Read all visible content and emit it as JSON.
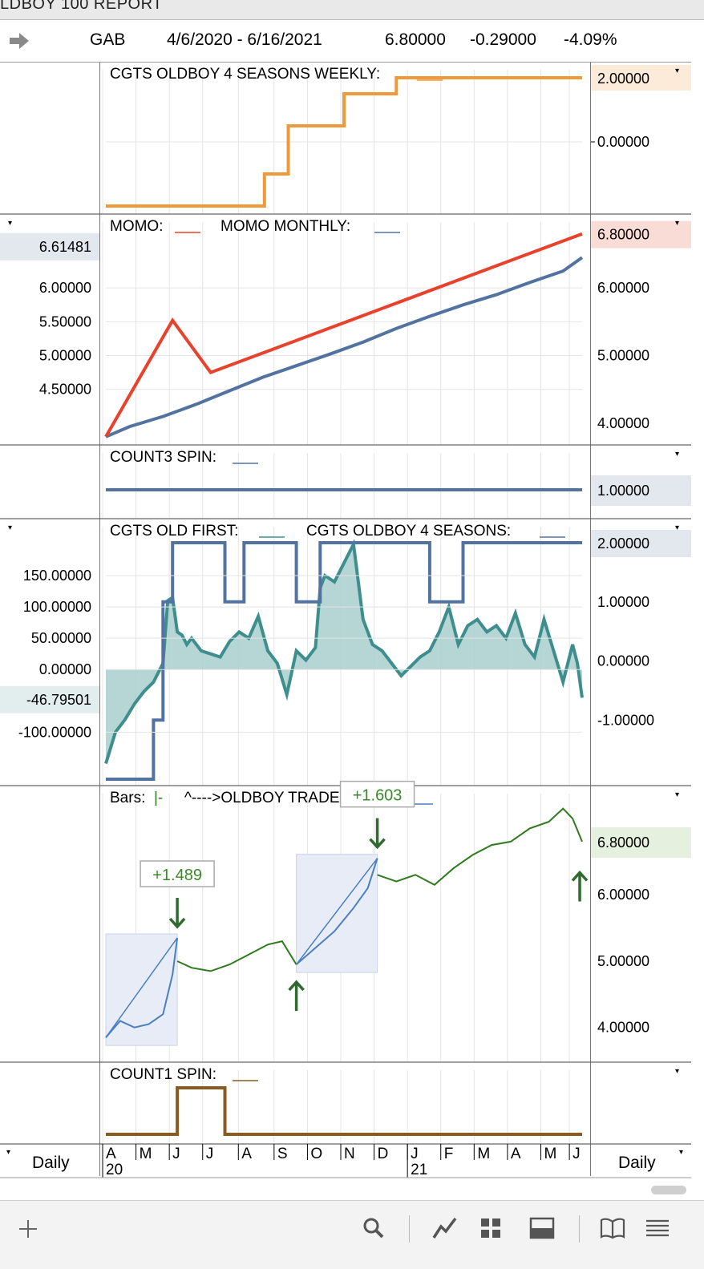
{
  "window": {
    "title": "LDBOY 100  REPORT"
  },
  "header": {
    "symbol": "GAB",
    "date_range": "4/6/2020 - 6/16/2021",
    "last": "6.80000",
    "change": "-0.29000",
    "pct_change": "-4.09%"
  },
  "colors": {
    "orange": "#F0993A",
    "red": "#E8412C",
    "blue": "#5272A0",
    "teal": "#3F8E8E",
    "teal_fill": "#A9CFCF",
    "green": "#2E7A1C",
    "brown": "#8B5A1E",
    "trade_blue": "#4A7FBF"
  },
  "footer": {
    "left_period": "Daily",
    "right_period": "Daily"
  },
  "toolbar": {
    "icons": [
      "plus-icon",
      "search-icon",
      "line-chart-icon",
      "grid-icon",
      "panel-icon",
      "book-icon",
      "menu-icon"
    ]
  },
  "chart_data": [
    {
      "type": "line",
      "title": "CGTS OLDBOY 4 SEASONS WEEKLY:",
      "series": [
        {
          "name": "CGTS OLDBOY 4 SEASONS WEEKLY",
          "color": "#F0993A",
          "style": "step",
          "x": [
            0,
            0.333,
            0.333,
            0.383,
            0.383,
            0.5,
            0.5,
            0.515,
            0.515,
            0.61,
            0.61,
            0.625,
            0.625,
            1
          ],
          "values": [
            -2,
            -2,
            -1,
            -1,
            0.5,
            0.5,
            1.5,
            1.5,
            1.5,
            1.5,
            2,
            2,
            2,
            2
          ]
        }
      ],
      "right_ticks": [
        "0.00000"
      ],
      "right_badge": "2.00000",
      "ylim": [
        -2.1,
        2.2
      ]
    },
    {
      "type": "line",
      "title": "MOMO:",
      "title2": "MOMO MONTHLY:",
      "left_ticks": [
        "6.00000",
        "5.50000",
        "5.00000",
        "4.50000"
      ],
      "left_badge": "6.61481",
      "right_ticks": [
        "6.00000",
        "5.00000",
        "4.00000"
      ],
      "right_badge": "6.80000",
      "series": [
        {
          "name": "MOMO",
          "color": "#E8412C",
          "x": [
            0,
            0.14,
            0.22,
            1
          ],
          "values": [
            3.8,
            5.52,
            4.75,
            6.8
          ]
        },
        {
          "name": "MOMO MONTHLY",
          "color": "#5272A0",
          "style": "step",
          "x": [
            0,
            0.05,
            0.12,
            0.19,
            0.26,
            0.33,
            0.4,
            0.47,
            0.54,
            0.61,
            0.68,
            0.75,
            0.82,
            0.89,
            0.96,
            1
          ],
          "values": [
            3.8,
            3.95,
            4.1,
            4.28,
            4.48,
            4.68,
            4.85,
            5.02,
            5.2,
            5.4,
            5.58,
            5.75,
            5.9,
            6.08,
            6.25,
            6.45
          ]
        }
      ]
    },
    {
      "type": "line",
      "title": "COUNT3 SPIN:",
      "right_badge": "1.00000",
      "series": [
        {
          "name": "COUNT3 SPIN",
          "color": "#5272A0",
          "x": [
            0,
            1
          ],
          "values": [
            1,
            1
          ]
        }
      ]
    },
    {
      "type": "area",
      "title": "CGTS OLD FIRST:",
      "title2": "CGTS OLDBOY 4 SEASONS:",
      "left_ticks": [
        "150.00000",
        "100.00000",
        "50.00000",
        "0.00000",
        "-100.00000"
      ],
      "left_badge": "-46.79501",
      "right_ticks": [
        "1.00000",
        "0.00000",
        "-1.00000"
      ],
      "right_badge": "2.00000",
      "series": [
        {
          "name": "CGTS OLD FIRST",
          "color": "#3F8E8E",
          "x": [
            0,
            0.02,
            0.04,
            0.06,
            0.08,
            0.1,
            0.12,
            0.13,
            0.14,
            0.15,
            0.16,
            0.17,
            0.18,
            0.2,
            0.22,
            0.24,
            0.26,
            0.28,
            0.3,
            0.32,
            0.34,
            0.36,
            0.38,
            0.4,
            0.42,
            0.44,
            0.45,
            0.46,
            0.48,
            0.5,
            0.52,
            0.54,
            0.56,
            0.58,
            0.6,
            0.62,
            0.64,
            0.66,
            0.68,
            0.7,
            0.72,
            0.74,
            0.76,
            0.78,
            0.8,
            0.82,
            0.84,
            0.86,
            0.88,
            0.9,
            0.92,
            0.94,
            0.96,
            0.98,
            0.99,
            1
          ],
          "values": [
            -150,
            -100,
            -80,
            -55,
            -35,
            -20,
            10,
            110,
            115,
            60,
            55,
            40,
            50,
            30,
            25,
            20,
            45,
            60,
            50,
            85,
            30,
            10,
            -40,
            30,
            15,
            35,
            130,
            150,
            140,
            170,
            200,
            80,
            40,
            30,
            10,
            -10,
            5,
            20,
            30,
            60,
            100,
            40,
            70,
            80,
            60,
            70,
            50,
            90,
            40,
            20,
            80,
            30,
            -20,
            40,
            10,
            -45
          ]
        },
        {
          "name": "CGTS OLDBOY 4 SEASONS",
          "color": "#5272A0",
          "style": "step",
          "x": [
            0,
            0.1,
            0.1,
            0.12,
            0.12,
            0.14,
            0.14,
            0.25,
            0.25,
            0.29,
            0.29,
            0.4,
            0.4,
            0.45,
            0.45,
            0.55,
            0.55,
            0.68,
            0.68,
            0.75,
            0.75,
            1
          ],
          "values": [
            -2,
            -2,
            -1,
            -1,
            1,
            1,
            2,
            2,
            1,
            1,
            2,
            2,
            1,
            1,
            2,
            2,
            2,
            2,
            1,
            1,
            2,
            2
          ]
        }
      ]
    },
    {
      "type": "line",
      "title": "Bars:",
      "title_bars_glyph": "|-",
      "title2": "^---->OLDBOY TRADE 100:",
      "right_ticks": [
        "6.00000",
        "5.00000",
        "4.00000"
      ],
      "right_badge": "6.80000",
      "annotations": [
        {
          "label": "+1.489"
        },
        {
          "label": "+1.603"
        }
      ],
      "trades": [
        {
          "x0": 0,
          "y0": 3.85,
          "x1": 0.15,
          "y1": 5.35
        },
        {
          "x0": 0.4,
          "y0": 4.95,
          "x1": 0.57,
          "y1": 6.55
        }
      ],
      "series": [
        {
          "name": "price-pre",
          "color": "#4A7FBF",
          "x": [
            0,
            0.03,
            0.06,
            0.09,
            0.12,
            0.14,
            0.15
          ],
          "values": [
            3.85,
            4.1,
            4.0,
            4.05,
            4.2,
            4.8,
            5.35
          ]
        },
        {
          "name": "price-mid",
          "color": "#2E7A1C",
          "x": [
            0.15,
            0.18,
            0.22,
            0.26,
            0.3,
            0.34,
            0.37,
            0.4
          ],
          "values": [
            5.0,
            4.9,
            4.85,
            4.95,
            5.1,
            5.25,
            5.3,
            4.95
          ]
        },
        {
          "name": "price-trade2",
          "color": "#4A7FBF",
          "x": [
            0.4,
            0.44,
            0.48,
            0.52,
            0.55,
            0.57
          ],
          "values": [
            4.95,
            5.2,
            5.45,
            5.8,
            6.1,
            6.55
          ]
        },
        {
          "name": "price-post",
          "color": "#2E7A1C",
          "x": [
            0.57,
            0.61,
            0.65,
            0.69,
            0.73,
            0.77,
            0.81,
            0.85,
            0.89,
            0.93,
            0.96,
            0.98,
            1
          ],
          "values": [
            6.3,
            6.2,
            6.3,
            6.15,
            6.4,
            6.6,
            6.75,
            6.8,
            7.0,
            7.1,
            7.3,
            7.15,
            6.8
          ]
        }
      ]
    },
    {
      "type": "line",
      "title": "COUNT1 SPIN:",
      "series": [
        {
          "name": "COUNT1 SPIN",
          "color": "#8B5A1E",
          "style": "step",
          "x": [
            0,
            0.15,
            0.15,
            0.25,
            0.25,
            1
          ],
          "values": [
            0,
            0,
            1,
            1,
            0,
            0
          ]
        }
      ]
    }
  ],
  "x_axis": {
    "months": [
      "A",
      "M",
      "J",
      "J",
      "A",
      "S",
      "O",
      "N",
      "D",
      "J",
      "F",
      "M",
      "A",
      "M",
      "J"
    ],
    "years": [
      "20",
      "21"
    ]
  }
}
